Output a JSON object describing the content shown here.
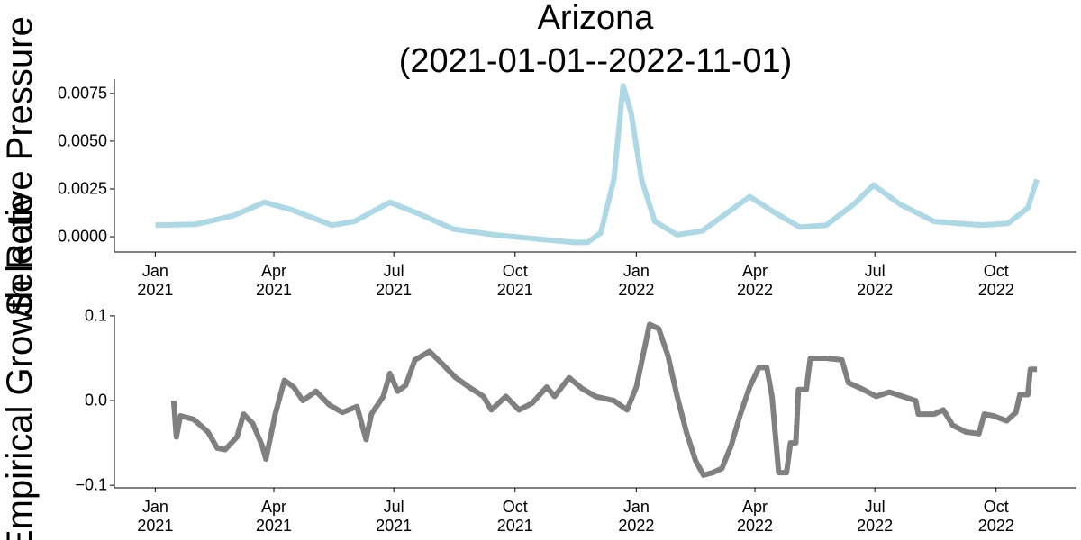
{
  "chart_data": [
    {
      "type": "line",
      "title": "Arizona",
      "subtitle": "(2021-01-01--2022-11-01)",
      "ylabel": "Selective Pressure",
      "color": "#add8e6",
      "x": [
        "2021-01-01",
        "2021-02-01",
        "2021-03-01",
        "2021-03-25",
        "2021-04-15",
        "2021-05-15",
        "2021-06-01",
        "2021-06-28",
        "2021-07-20",
        "2021-08-15",
        "2021-09-15",
        "2021-10-15",
        "2021-11-15",
        "2021-11-25",
        "2021-12-05",
        "2021-12-15",
        "2021-12-22",
        "2021-12-28",
        "2022-01-05",
        "2022-01-15",
        "2022-02-01",
        "2022-02-20",
        "2022-03-10",
        "2022-03-28",
        "2022-04-15",
        "2022-05-05",
        "2022-05-25",
        "2022-06-15",
        "2022-06-30",
        "2022-07-20",
        "2022-08-15",
        "2022-09-20",
        "2022-10-10",
        "2022-10-25",
        "2022-11-01"
      ],
      "values": [
        0.0006,
        0.00065,
        0.0011,
        0.0018,
        0.0014,
        0.0006,
        0.0008,
        0.0018,
        0.0012,
        0.0004,
        0.0001,
        -0.0001,
        -0.0003,
        -0.0003,
        0.0002,
        0.003,
        0.0079,
        0.0065,
        0.003,
        0.0008,
        0.0001,
        0.0003,
        0.0012,
        0.0021,
        0.0013,
        0.0005,
        0.0006,
        0.0017,
        0.0027,
        0.0017,
        0.0008,
        0.0006,
        0.0007,
        0.0015,
        0.003
      ],
      "xlim": [
        "2020-12-01",
        "2022-12-01"
      ],
      "xticks": [
        {
          "value": "2021-01-01",
          "label": "Jan\n2021"
        },
        {
          "value": "2021-04-01",
          "label": "Apr\n2021"
        },
        {
          "value": "2021-07-01",
          "label": "Jul\n2021"
        },
        {
          "value": "2021-10-01",
          "label": "Oct\n2021"
        },
        {
          "value": "2022-01-01",
          "label": "Jan\n2022"
        },
        {
          "value": "2022-04-01",
          "label": "Apr\n2022"
        },
        {
          "value": "2022-07-01",
          "label": "Jul\n2022"
        },
        {
          "value": "2022-10-01",
          "label": "Oct\n2022"
        }
      ],
      "ylim": [
        -0.0008,
        0.00825
      ],
      "yticks": [
        {
          "value": 0,
          "label": "0.0000"
        },
        {
          "value": 0.0025,
          "label": "0.0025"
        },
        {
          "value": 0.005,
          "label": "0.0050"
        },
        {
          "value": 0.0075,
          "label": "0.0075"
        }
      ]
    },
    {
      "type": "line",
      "ylabel": "Empirical Growth Rate",
      "color": "#808080",
      "x": [
        "2021-01-15",
        "2021-01-17",
        "2021-01-20",
        "2021-01-30",
        "2021-02-10",
        "2021-02-17",
        "2021-02-23",
        "2021-03-04",
        "2021-03-09",
        "2021-03-16",
        "2021-03-23",
        "2021-03-26",
        "2021-04-02",
        "2021-04-09",
        "2021-04-16",
        "2021-04-23",
        "2021-05-03",
        "2021-05-13",
        "2021-05-23",
        "2021-06-03",
        "2021-06-10",
        "2021-06-14",
        "2021-06-23",
        "2021-06-28",
        "2021-07-04",
        "2021-07-10",
        "2021-07-17",
        "2021-07-28",
        "2021-08-07",
        "2021-08-17",
        "2021-08-27",
        "2021-09-07",
        "2021-09-13",
        "2021-09-24",
        "2021-10-04",
        "2021-10-14",
        "2021-10-25",
        "2021-10-31",
        "2021-11-11",
        "2021-11-21",
        "2021-12-01",
        "2021-12-15",
        "2021-12-25",
        "2022-01-01",
        "2022-01-06",
        "2022-01-11",
        "2022-01-18",
        "2022-01-25",
        "2022-02-01",
        "2022-02-08",
        "2022-02-15",
        "2022-02-21",
        "2022-02-28",
        "2022-03-07",
        "2022-03-14",
        "2022-03-21",
        "2022-03-28",
        "2022-04-04",
        "2022-04-10",
        "2022-04-14",
        "2022-04-19",
        "2022-04-25",
        "2022-04-28",
        "2022-05-02",
        "2022-05-04",
        "2022-05-10",
        "2022-05-13",
        "2022-05-25",
        "2022-06-06",
        "2022-06-11",
        "2022-06-21",
        "2022-07-02",
        "2022-07-12",
        "2022-07-22",
        "2022-08-01",
        "2022-08-03",
        "2022-08-15",
        "2022-08-22",
        "2022-08-29",
        "2022-09-08",
        "2022-09-18",
        "2022-09-22",
        "2022-09-29",
        "2022-10-09",
        "2022-10-16",
        "2022-10-19",
        "2022-10-25",
        "2022-10-27",
        "2022-11-01"
      ],
      "values": [
        0.0,
        -0.043,
        -0.018,
        -0.022,
        -0.037,
        -0.056,
        -0.058,
        -0.043,
        -0.016,
        -0.027,
        -0.053,
        -0.069,
        -0.016,
        0.024,
        0.016,
        0.0,
        0.011,
        -0.005,
        -0.014,
        -0.007,
        -0.046,
        -0.016,
        0.005,
        0.032,
        0.011,
        0.018,
        0.048,
        0.058,
        0.043,
        0.027,
        0.016,
        0.005,
        -0.011,
        0.005,
        -0.011,
        -0.003,
        0.016,
        0.005,
        0.027,
        0.014,
        0.005,
        0.0,
        -0.011,
        0.016,
        0.053,
        0.09,
        0.085,
        0.053,
        0.005,
        -0.037,
        -0.071,
        -0.088,
        -0.085,
        -0.08,
        -0.053,
        -0.016,
        0.016,
        0.039,
        0.039,
        0.005,
        -0.085,
        -0.085,
        -0.05,
        -0.05,
        0.013,
        0.013,
        0.05,
        0.05,
        0.048,
        0.021,
        0.014,
        0.005,
        0.01,
        0.005,
        0.0,
        -0.016,
        -0.016,
        -0.011,
        -0.029,
        -0.037,
        -0.039,
        -0.016,
        -0.018,
        -0.024,
        -0.014,
        0.007,
        0.007,
        0.037,
        0.037
      ],
      "xlim": [
        "2020-12-01",
        "2022-12-01"
      ],
      "xticks": [
        {
          "value": "2021-01-01",
          "label": "Jan\n2021"
        },
        {
          "value": "2021-04-01",
          "label": "Apr\n2021"
        },
        {
          "value": "2021-07-01",
          "label": "Jul\n2021"
        },
        {
          "value": "2021-10-01",
          "label": "Oct\n2021"
        },
        {
          "value": "2022-01-01",
          "label": "Jan\n2022"
        },
        {
          "value": "2022-04-01",
          "label": "Apr\n2022"
        },
        {
          "value": "2022-07-01",
          "label": "Jul\n2022"
        },
        {
          "value": "2022-10-01",
          "label": "Oct\n2022"
        }
      ],
      "ylim": [
        -0.103,
        0.101
      ],
      "yticks": [
        {
          "value": -0.1,
          "label": "−0.1"
        },
        {
          "value": 0,
          "label": "0.0"
        },
        {
          "value": 0.1,
          "label": "0.1"
        }
      ]
    }
  ]
}
